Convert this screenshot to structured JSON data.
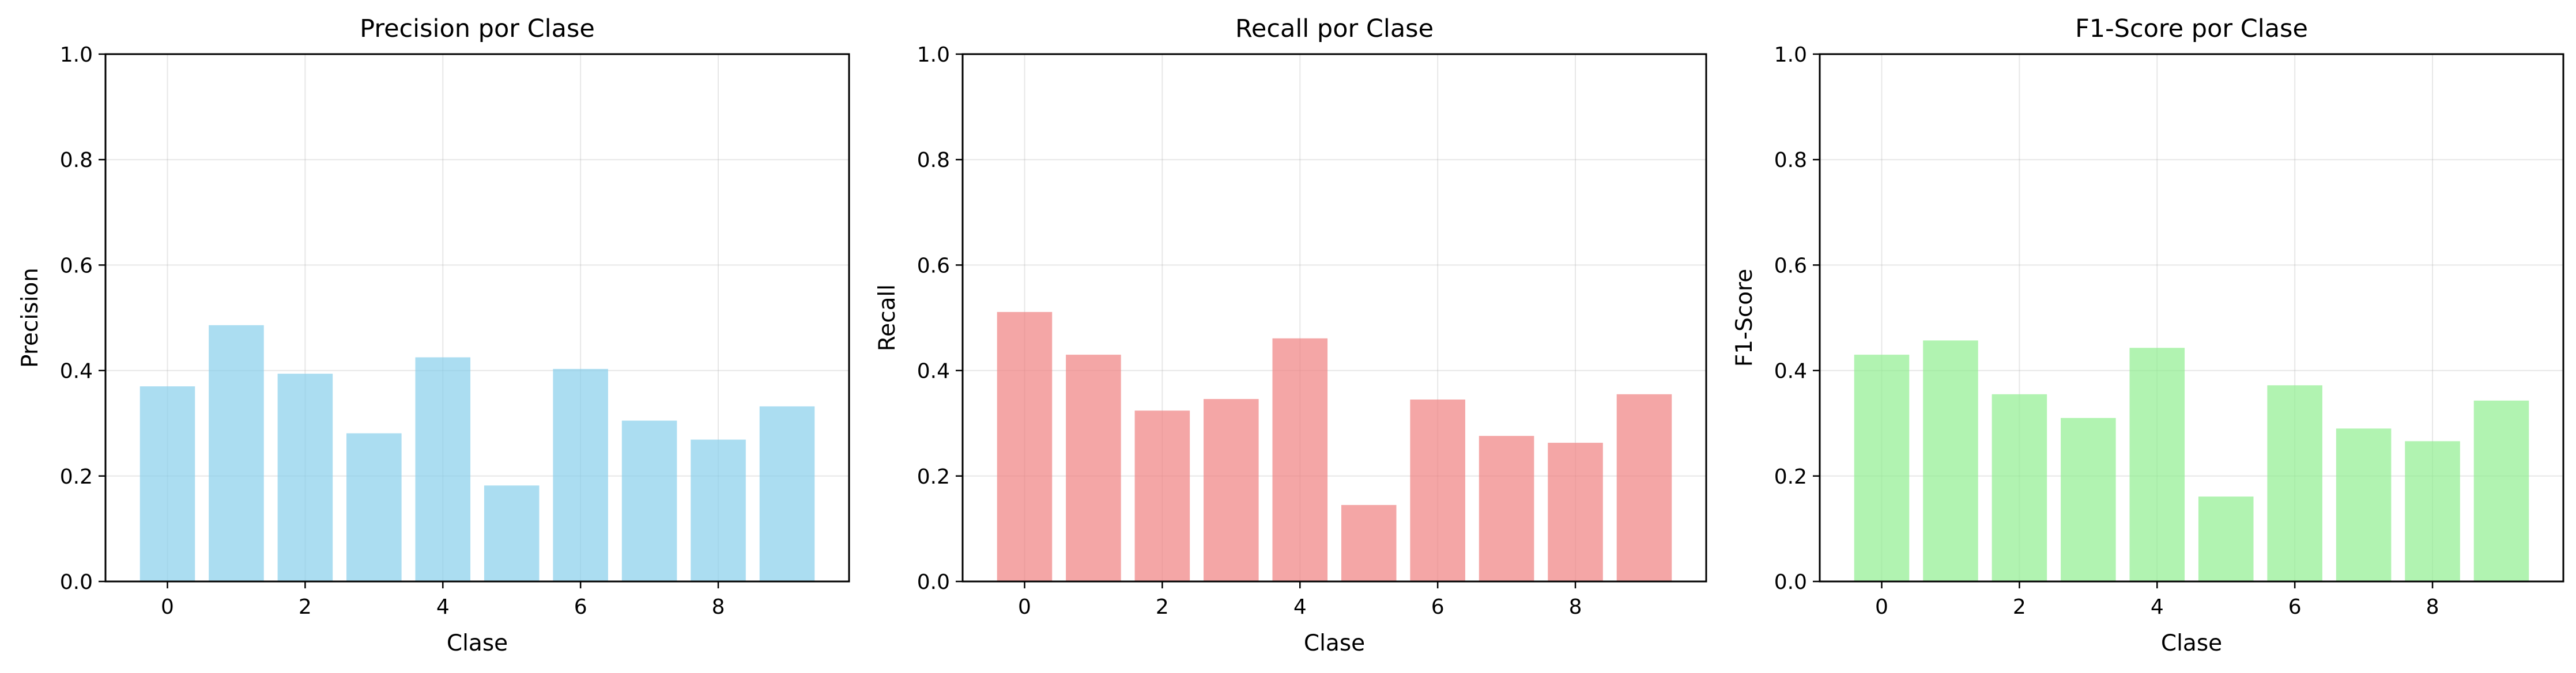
{
  "chart_data": [
    {
      "type": "bar",
      "title": "Precision por Clase",
      "xlabel": "Clase",
      "ylabel": "Precision",
      "x": [
        0,
        1,
        2,
        3,
        4,
        5,
        6,
        7,
        8,
        9
      ],
      "values": [
        0.37,
        0.486,
        0.394,
        0.281,
        0.425,
        0.182,
        0.403,
        0.305,
        0.269,
        0.332
      ],
      "ylim": [
        0,
        1.0
      ],
      "xlim": [
        -0.9,
        9.9
      ],
      "xticks": [
        "0",
        "2",
        "4",
        "6",
        "8"
      ],
      "yticks": [
        "0.0",
        "0.2",
        "0.4",
        "0.6",
        "0.8",
        "1.0"
      ],
      "grid": true,
      "color": "#87ceeb"
    },
    {
      "type": "bar",
      "title": "Recall por Clase",
      "xlabel": "Clase",
      "ylabel": "Recall",
      "x": [
        0,
        1,
        2,
        3,
        4,
        5,
        6,
        7,
        8,
        9
      ],
      "values": [
        0.511,
        0.43,
        0.324,
        0.346,
        0.461,
        0.145,
        0.345,
        0.276,
        0.263,
        0.355
      ],
      "ylim": [
        0,
        1.0
      ],
      "xlim": [
        -0.9,
        9.9
      ],
      "xticks": [
        "0",
        "2",
        "4",
        "6",
        "8"
      ],
      "yticks": [
        "0.0",
        "0.2",
        "0.4",
        "0.6",
        "0.8",
        "1.0"
      ],
      "grid": true,
      "color": "#f08080"
    },
    {
      "type": "bar",
      "title": "F1-Score por Clase",
      "xlabel": "Clase",
      "ylabel": "F1-Score",
      "x": [
        0,
        1,
        2,
        3,
        4,
        5,
        6,
        7,
        8,
        9
      ],
      "values": [
        0.43,
        0.457,
        0.355,
        0.31,
        0.443,
        0.161,
        0.372,
        0.29,
        0.266,
        0.343
      ],
      "ylim": [
        0,
        1.0
      ],
      "xlim": [
        -0.9,
        9.9
      ],
      "xticks": [
        "0",
        "2",
        "4",
        "6",
        "8"
      ],
      "yticks": [
        "0.0",
        "0.2",
        "0.4",
        "0.6",
        "0.8",
        "1.0"
      ],
      "grid": true,
      "color": "#90ee90"
    }
  ]
}
